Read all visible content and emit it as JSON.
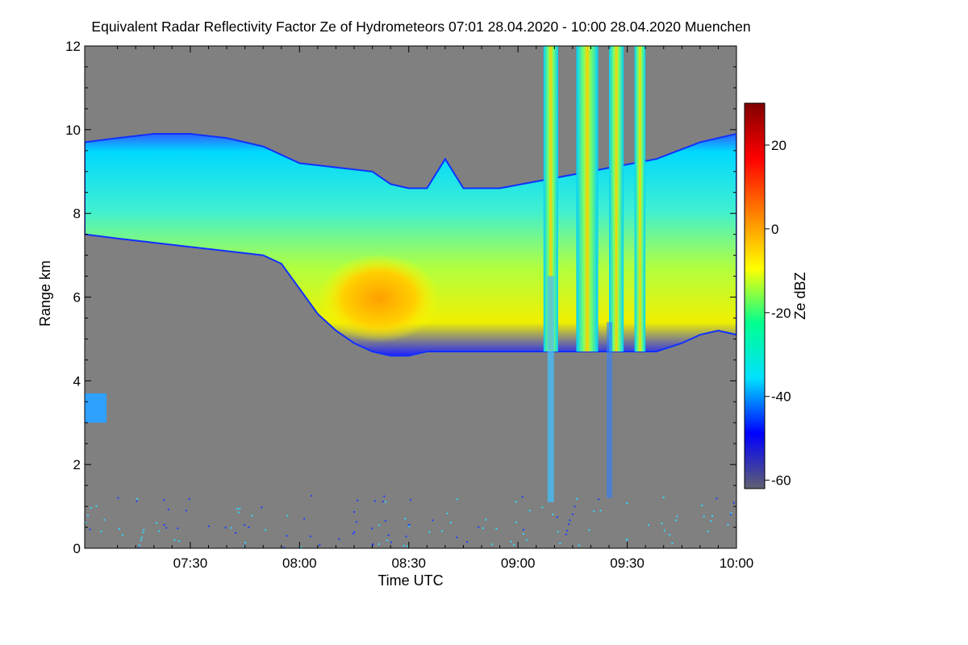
{
  "chart_data": {
    "type": "heatmap",
    "title": "Equivalent Radar Reflectivity Factor Ze of Hydrometeors   07:01 28.04.2020 - 10:00 28.04.2020 Muenchen",
    "xlabel": "Time UTC",
    "ylabel": "Range km",
    "x_ticks": [
      "07:30",
      "08:00",
      "08:30",
      "09:00",
      "09:30",
      "10:00"
    ],
    "x_tick_minutes": [
      450,
      480,
      510,
      540,
      570,
      600
    ],
    "xlim_minutes": [
      421,
      600
    ],
    "y_ticks": [
      "0",
      "2",
      "4",
      "6",
      "8",
      "10",
      "12"
    ],
    "y_tick_values": [
      0,
      2,
      4,
      6,
      8,
      10,
      12
    ],
    "ylim": [
      0,
      12
    ],
    "colorbar": {
      "label": "Ze dBZ",
      "ticks": [
        "20",
        "0",
        "-20",
        "-40",
        "-60"
      ],
      "tick_values": [
        20,
        0,
        -20,
        -40,
        -60
      ],
      "range": [
        -62,
        30
      ],
      "colors": [
        "#606070",
        "#0000ff",
        "#00e0ff",
        "#00ff90",
        "#ffff00",
        "#ff8000",
        "#ff0000",
        "#800000"
      ]
    },
    "background_color": "#808080",
    "cloud_top_km": [
      [
        421,
        9.7
      ],
      [
        430,
        9.8
      ],
      [
        440,
        9.9
      ],
      [
        450,
        9.9
      ],
      [
        460,
        9.8
      ],
      [
        470,
        9.6
      ],
      [
        480,
        9.2
      ],
      [
        490,
        9.1
      ],
      [
        500,
        9.0
      ],
      [
        505,
        8.7
      ],
      [
        510,
        8.6
      ],
      [
        515,
        8.6
      ],
      [
        520,
        9.3
      ],
      [
        525,
        8.6
      ],
      [
        530,
        8.6
      ],
      [
        535,
        8.6
      ],
      [
        578,
        9.3
      ],
      [
        590,
        9.7
      ],
      [
        600,
        9.9
      ]
    ],
    "cloud_base_km": [
      [
        421,
        7.5
      ],
      [
        430,
        7.4
      ],
      [
        440,
        7.3
      ],
      [
        450,
        7.2
      ],
      [
        460,
        7.1
      ],
      [
        470,
        7.0
      ],
      [
        475,
        6.8
      ],
      [
        480,
        6.2
      ],
      [
        485,
        5.6
      ],
      [
        490,
        5.2
      ],
      [
        495,
        4.9
      ],
      [
        500,
        4.7
      ],
      [
        505,
        4.6
      ],
      [
        510,
        4.6
      ],
      [
        515,
        4.7
      ],
      [
        520,
        4.7
      ],
      [
        535,
        4.7
      ],
      [
        578,
        4.7
      ],
      [
        585,
        4.9
      ],
      [
        590,
        5.1
      ],
      [
        595,
        5.2
      ],
      [
        600,
        5.1
      ]
    ],
    "vertical_streaks_minutes": [
      [
        547,
        551
      ],
      [
        556,
        562
      ],
      [
        565,
        569
      ],
      [
        572,
        575
      ]
    ]
  }
}
